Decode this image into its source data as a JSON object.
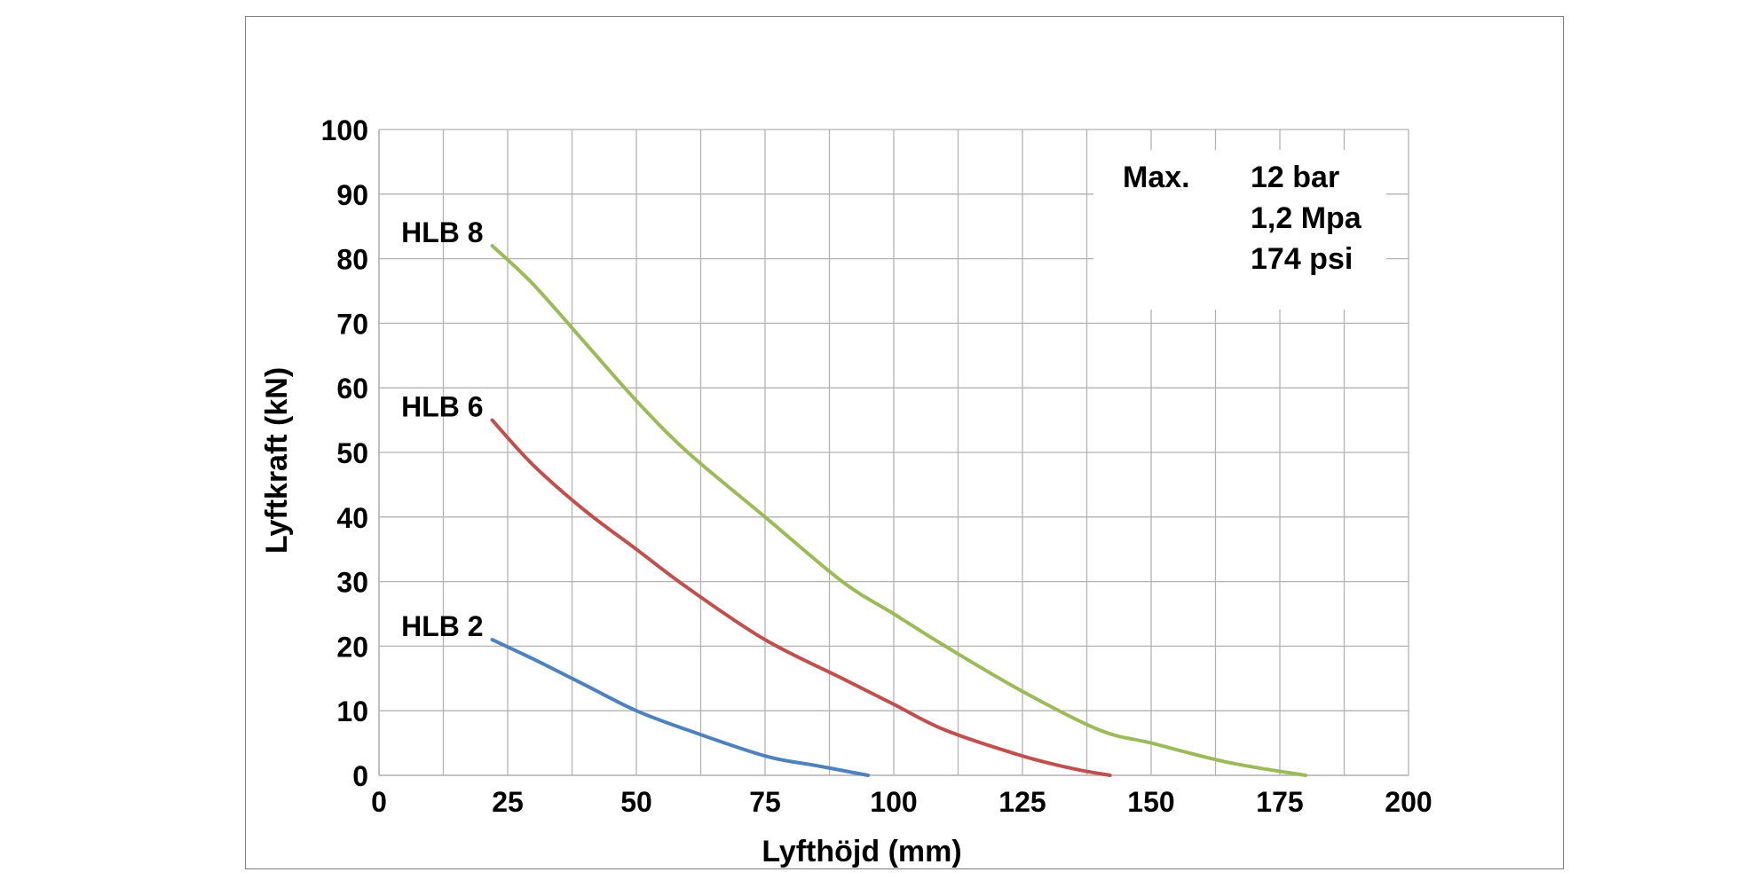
{
  "chart_data": {
    "type": "line",
    "title": "",
    "xlabel": "Lyfthöjd (mm)",
    "ylabel": "Lyftkraft (kN)",
    "xlim": [
      0,
      200
    ],
    "ylim": [
      0,
      100
    ],
    "x_ticks": [
      "0",
      "25",
      "50",
      "75",
      "100",
      "125",
      "150",
      "175",
      "200"
    ],
    "y_ticks": [
      "0",
      "10",
      "20",
      "30",
      "40",
      "50",
      "60",
      "70",
      "80",
      "90",
      "100"
    ],
    "grid": true,
    "series": [
      {
        "name": "HLB 8",
        "color": "#9bbb59",
        "x": [
          22,
          30,
          40,
          50,
          60,
          75,
          90,
          100,
          110,
          125,
          140,
          150,
          165,
          180
        ],
        "y": [
          82,
          76,
          67,
          58,
          50,
          40,
          30,
          25,
          20,
          13,
          7,
          5,
          2,
          0
        ]
      },
      {
        "name": "HLB 6",
        "color": "#c0504d",
        "x": [
          22,
          30,
          40,
          50,
          60,
          75,
          90,
          100,
          110,
          125,
          135,
          142
        ],
        "y": [
          55,
          48,
          41,
          35,
          29,
          21,
          15,
          11,
          7,
          3,
          1,
          0
        ]
      },
      {
        "name": "HLB 2",
        "color": "#4f81bd",
        "x": [
          22,
          30,
          40,
          50,
          60,
          75,
          85,
          95
        ],
        "y": [
          21,
          18,
          14,
          10,
          7,
          3,
          1.5,
          0
        ]
      }
    ],
    "annotation": {
      "label": "Max.",
      "lines": [
        "12 bar",
        "1,2 Mpa",
        "174 psi"
      ]
    }
  }
}
